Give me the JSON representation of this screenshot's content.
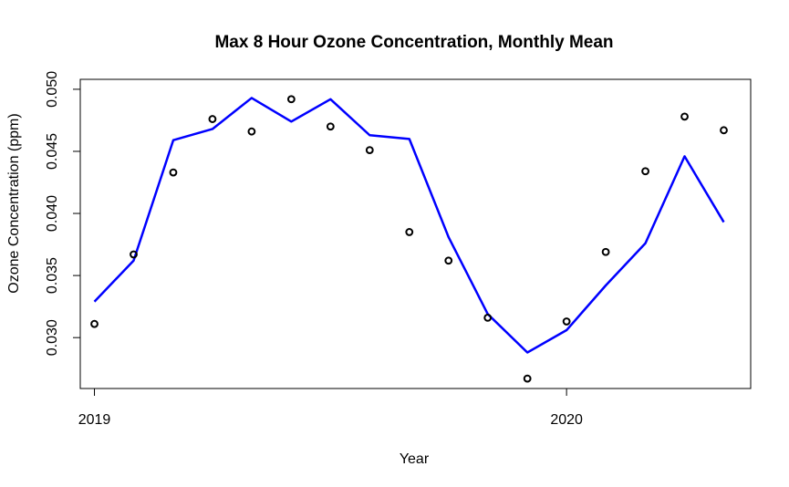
{
  "chart_data": {
    "type": "scatter",
    "title": "Max 8 Hour Ozone Concentration, Monthly Mean",
    "xlabel": "Year",
    "ylabel": "Ozone Concentration (ppm)",
    "xlim": [
      2018.97,
      2020.39
    ],
    "ylim": [
      0.0259,
      0.0508
    ],
    "x_ticks": [
      2019,
      2020
    ],
    "x_tick_labels": [
      "2019",
      "2020"
    ],
    "y_ticks": [
      0.03,
      0.035,
      0.04,
      0.045,
      0.05
    ],
    "y_tick_labels": [
      "0.030",
      "0.035",
      "0.040",
      "0.045",
      "0.050"
    ],
    "grid": false,
    "series": [
      {
        "kind": "points",
        "marker": "open-circle",
        "color": "#000000",
        "x": [
          2019.0,
          2019.083,
          2019.167,
          2019.25,
          2019.333,
          2019.417,
          2019.5,
          2019.583,
          2019.667,
          2019.75,
          2019.833,
          2019.917,
          2020.0,
          2020.083,
          2020.167,
          2020.25,
          2020.333
        ],
        "y": [
          0.0311,
          0.0367,
          0.0433,
          0.0476,
          0.0466,
          0.0492,
          0.047,
          0.0451,
          0.0385,
          0.0362,
          0.0316,
          0.0267,
          0.0313,
          0.0369,
          0.0434,
          0.0478,
          0.0467
        ]
      },
      {
        "kind": "line",
        "color": "#0000ff",
        "x": [
          2019.0,
          2019.083,
          2019.167,
          2019.25,
          2019.333,
          2019.417,
          2019.5,
          2019.583,
          2019.667,
          2019.75,
          2019.833,
          2019.917,
          2020.0,
          2020.083,
          2020.167,
          2020.25,
          2020.333
        ],
        "y": [
          0.0329,
          0.0362,
          0.0459,
          0.0468,
          0.0493,
          0.0474,
          0.0492,
          0.0463,
          0.046,
          0.0381,
          0.0319,
          0.0288,
          0.0306,
          0.0342,
          0.0376,
          0.0446,
          0.0393
        ]
      }
    ]
  }
}
